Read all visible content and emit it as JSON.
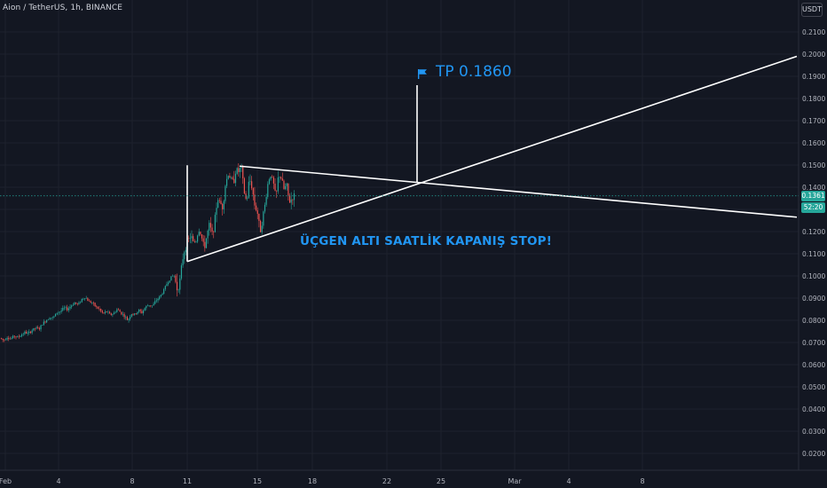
{
  "header": {
    "symbol_title": "Aion / TetherUS, 1h, BINANCE",
    "currency": "USDT"
  },
  "annotations": {
    "tp_label": "TP 0.1860",
    "stop_note": "ÜÇGEN ALTI SAATLİK KAPANIŞ STOP!",
    "flag_icon": "flag-icon"
  },
  "price_scale": {
    "last_price": "0.1361",
    "countdown": "52:20"
  },
  "colors": {
    "background": "#131722",
    "grid": "#1e222d",
    "up": "#26a69a",
    "down": "#ef5350",
    "annotation": "#2196f3",
    "drawing": "#ffffff"
  },
  "chart_data": {
    "type": "candlestick",
    "symbol": "Aion / TetherUS",
    "interval": "1h",
    "exchange": "BINANCE",
    "y_ticks": [
      "0.2100",
      "0.2000",
      "0.1900",
      "0.1800",
      "0.1700",
      "0.1600",
      "0.1500",
      "0.1400",
      "0.1300",
      "0.1200",
      "0.1100",
      "0.1000",
      "0.0900",
      "0.0800",
      "0.0700",
      "0.0600",
      "0.0500",
      "0.0400",
      "0.0300",
      "0.0200"
    ],
    "x_ticks": [
      "Feb",
      "4",
      "8",
      "11",
      "15",
      "18",
      "22",
      "25",
      "Mar",
      "4",
      "8"
    ],
    "ylim": [
      0.0163,
      0.2216
    ],
    "last_price": 0.1361,
    "grid": true,
    "price_path": [
      [
        0,
        0.072
      ],
      [
        4,
        0.071
      ],
      [
        8,
        0.0725
      ],
      [
        12,
        0.0715
      ],
      [
        16,
        0.073
      ],
      [
        20,
        0.0722
      ],
      [
        24,
        0.0735
      ],
      [
        28,
        0.0745
      ],
      [
        32,
        0.074
      ],
      [
        36,
        0.0755
      ],
      [
        40,
        0.0765
      ],
      [
        44,
        0.076
      ],
      [
        48,
        0.0785
      ],
      [
        52,
        0.08
      ],
      [
        56,
        0.0815
      ],
      [
        60,
        0.081
      ],
      [
        64,
        0.0835
      ],
      [
        68,
        0.084
      ],
      [
        72,
        0.0855
      ],
      [
        76,
        0.085
      ],
      [
        80,
        0.0865
      ],
      [
        84,
        0.088
      ],
      [
        88,
        0.087
      ],
      [
        92,
        0.0895
      ],
      [
        96,
        0.0905
      ],
      [
        100,
        0.0885
      ],
      [
        104,
        0.088
      ],
      [
        108,
        0.086
      ],
      [
        112,
        0.085
      ],
      [
        116,
        0.083
      ],
      [
        120,
        0.084
      ],
      [
        124,
        0.0825
      ],
      [
        128,
        0.083
      ],
      [
        132,
        0.085
      ],
      [
        136,
        0.0835
      ],
      [
        140,
        0.082
      ],
      [
        144,
        0.08
      ],
      [
        148,
        0.083
      ],
      [
        152,
        0.0825
      ],
      [
        156,
        0.0845
      ],
      [
        160,
        0.0835
      ],
      [
        164,
        0.086
      ],
      [
        168,
        0.087
      ],
      [
        172,
        0.0865
      ],
      [
        176,
        0.089
      ],
      [
        180,
        0.0905
      ],
      [
        184,
        0.093
      ],
      [
        188,
        0.0965
      ],
      [
        192,
        0.099
      ],
      [
        196,
        0.1005
      ],
      [
        200,
        0.0935
      ],
      [
        203,
        0.0985
      ],
      [
        206,
        0.108
      ],
      [
        209,
        0.1135
      ],
      [
        212,
        0.116
      ],
      [
        215,
        0.118
      ],
      [
        218,
        0.115
      ],
      [
        221,
        0.116
      ],
      [
        224,
        0.121
      ],
      [
        227,
        0.118
      ],
      [
        230,
        0.112
      ],
      [
        233,
        0.118
      ],
      [
        236,
        0.123
      ],
      [
        239,
        0.119
      ],
      [
        242,
        0.124
      ],
      [
        245,
        0.135
      ],
      [
        248,
        0.133
      ],
      [
        251,
        0.131
      ],
      [
        254,
        0.141
      ],
      [
        257,
        0.146
      ],
      [
        260,
        0.144
      ],
      [
        263,
        0.142
      ],
      [
        266,
        0.148
      ],
      [
        269,
        0.147
      ],
      [
        272,
        0.149
      ],
      [
        275,
        0.138
      ],
      [
        278,
        0.133
      ],
      [
        281,
        0.144
      ],
      [
        284,
        0.14
      ],
      [
        287,
        0.132
      ],
      [
        290,
        0.129
      ],
      [
        293,
        0.12
      ],
      [
        296,
        0.126
      ],
      [
        299,
        0.133
      ],
      [
        302,
        0.142
      ],
      [
        305,
        0.146
      ],
      [
        308,
        0.142
      ],
      [
        311,
        0.135
      ],
      [
        314,
        0.146
      ],
      [
        317,
        0.144
      ],
      [
        320,
        0.139
      ],
      [
        323,
        0.141
      ],
      [
        326,
        0.133
      ],
      [
        329,
        0.135
      ],
      [
        332,
        0.1361
      ]
    ],
    "drawings": {
      "pole": {
        "x": 211,
        "from": 0.1065,
        "to": 0.1495
      },
      "triangle_upper": [
        [
          270,
          0.1495
        ],
        [
          898,
          0.1265
        ]
      ],
      "triangle_lower": [
        [
          211,
          0.1065
        ],
        [
          898,
          0.199
        ]
      ],
      "target_vertical": {
        "x": 470,
        "from": 0.142,
        "to": 0.186
      }
    }
  }
}
